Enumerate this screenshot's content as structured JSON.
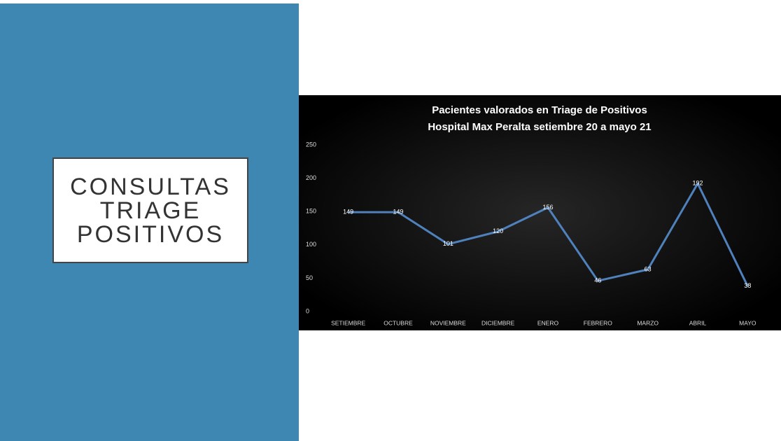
{
  "slide_title": [
    "CONSULTAS",
    "TRIAGE",
    "POSITIVOS"
  ],
  "chart_data": {
    "type": "line",
    "title": [
      "Pacientes valorados en Triage de Positivos",
      "Hospital Max Peralta setiembre 20 a mayo 21"
    ],
    "categories": [
      "SETIEMBRE",
      "OCTUBRE",
      "NOVIEMBRE",
      "DICIEMBRE",
      "ENERO",
      "FEBRERO",
      "MARZO",
      "ABRIL",
      "MAYO"
    ],
    "series": [
      {
        "color": "#4f81bd",
        "values": [
          149,
          149,
          101,
          120,
          156,
          46,
          63,
          192,
          38
        ]
      }
    ],
    "ylim": [
      0,
      250
    ],
    "yticks": [
      0,
      50,
      100,
      150,
      200,
      250
    ],
    "grid": false,
    "data_labels": true
  }
}
